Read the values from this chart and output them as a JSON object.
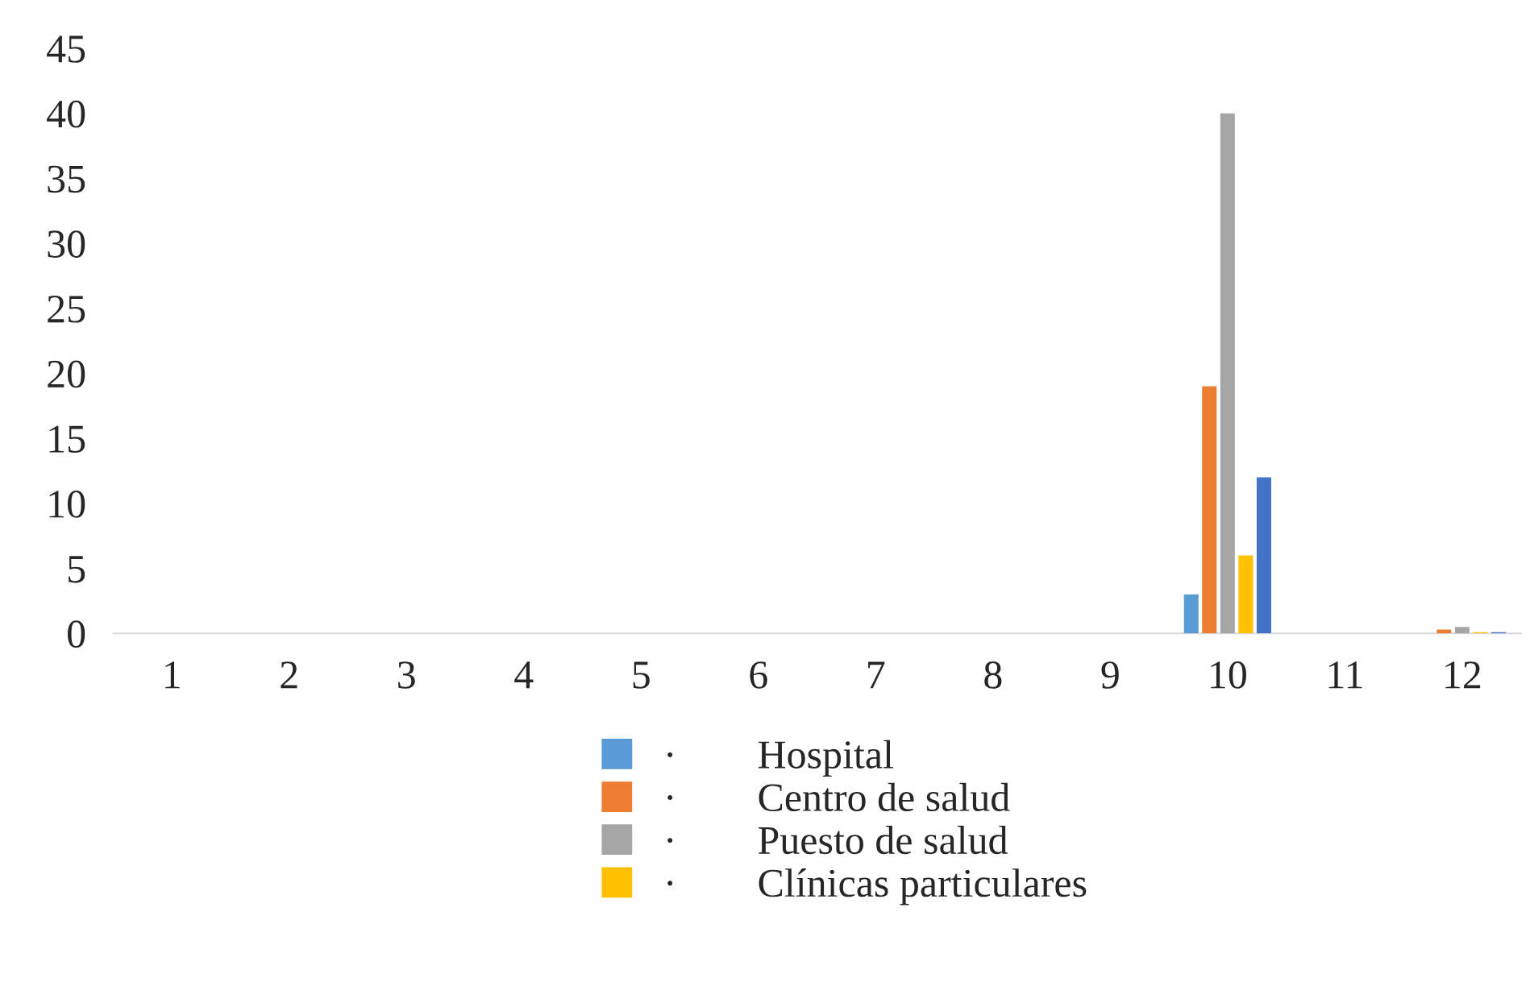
{
  "chart_data": {
    "type": "bar",
    "categories": [
      "1",
      "2",
      "3",
      "4",
      "5",
      "6",
      "7",
      "8",
      "9",
      "10",
      "11",
      "12"
    ],
    "series": [
      {
        "name": "·        Hospital",
        "color": "#5b9bd5",
        "values": [
          0,
          0,
          0,
          0,
          0,
          0,
          0,
          0,
          0,
          3,
          0,
          0
        ]
      },
      {
        "name": "·        Centro de salud",
        "color": "#ed7d31",
        "values": [
          0,
          0,
          0,
          0,
          0,
          0,
          0,
          0,
          0,
          19,
          0,
          0.3
        ]
      },
      {
        "name": "·        Puesto de salud",
        "color": "#a5a5a5",
        "values": [
          0,
          0,
          0,
          0,
          0,
          0,
          0,
          0,
          0,
          40,
          0,
          0.5
        ]
      },
      {
        "name": "·        Clínicas particulares",
        "color": "#ffc000",
        "values": [
          0,
          0,
          0,
          0,
          0,
          0,
          0,
          0,
          0,
          6,
          0,
          0.1
        ]
      },
      {
        "color": "#4472c4",
        "values": [
          0,
          0,
          0,
          0,
          0,
          0,
          0,
          0,
          0,
          12,
          0,
          0.1
        ]
      }
    ],
    "ylim": [
      0,
      45
    ],
    "yticks": [
      0,
      5,
      10,
      15,
      20,
      25,
      30,
      35,
      40,
      45
    ],
    "grid": false,
    "legend": "bottom"
  }
}
